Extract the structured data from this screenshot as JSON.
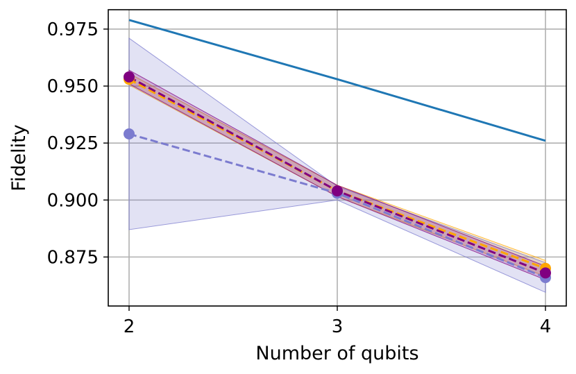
{
  "chart_data": {
    "type": "line",
    "title": "",
    "xlabel": "Number of qubits",
    "ylabel": "Fidelity",
    "x": [
      2,
      3,
      4
    ],
    "xlim": [
      1.9,
      4.1
    ],
    "ylim": [
      0.8535,
      0.9835
    ],
    "xticks": [
      "2",
      "3",
      "4"
    ],
    "yticks": [
      "0.875",
      "0.900",
      "0.925",
      "0.950",
      "0.975"
    ],
    "grid": true,
    "legend": "none",
    "series": [
      {
        "values": [
          0.979,
          0.953,
          0.926
        ],
        "color": "#1f77b4",
        "style": "solid",
        "markers": false
      },
      {
        "values": [
          0.953,
          0.904,
          0.87
        ],
        "color": "#ffa500",
        "style": "dashed",
        "markers": true,
        "band_low": [
          0.9505,
          0.9015,
          0.8665
        ],
        "band_high": [
          0.9555,
          0.9065,
          0.8735
        ]
      },
      {
        "values": [
          0.929,
          0.903,
          0.866
        ],
        "color": "#7b7bcf",
        "style": "dashed",
        "markers": true,
        "band_low": [
          0.887,
          0.9,
          0.8595
        ],
        "band_high": [
          0.971,
          0.906,
          0.8725
        ]
      },
      {
        "values": [
          0.954,
          0.904,
          0.868
        ],
        "color": "#800080",
        "style": "dashed",
        "markers": true,
        "band_low": [
          0.951,
          0.9015,
          0.865
        ],
        "band_high": [
          0.957,
          0.9065,
          0.871
        ]
      }
    ]
  }
}
